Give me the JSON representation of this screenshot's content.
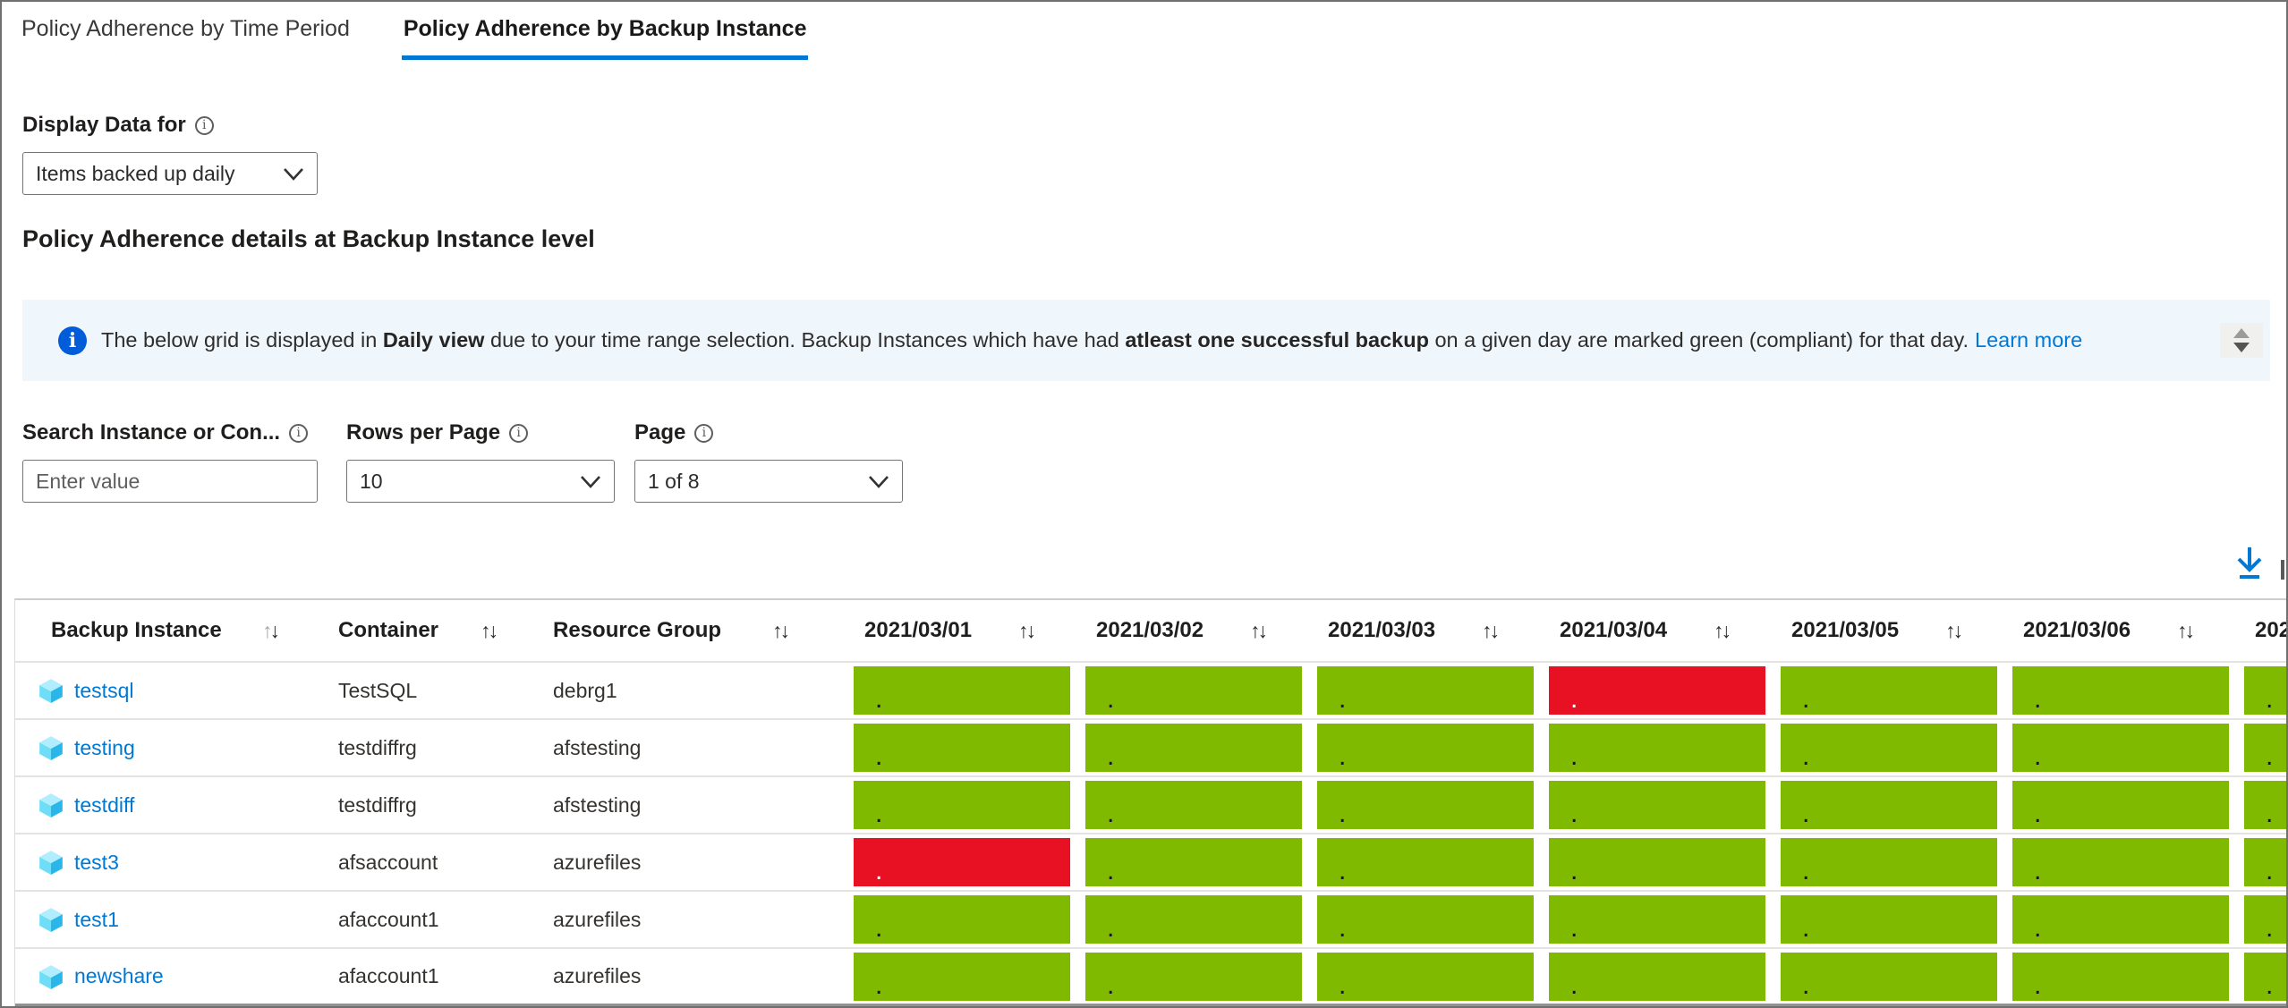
{
  "tabs": [
    {
      "label": "Policy Adherence by Time Period",
      "active": false
    },
    {
      "label": "Policy Adherence by Backup Instance",
      "active": true
    }
  ],
  "display_data": {
    "label": "Display Data for",
    "value": "Items backed up daily"
  },
  "section_title": "Policy Adherence details at Backup Instance level",
  "banner": {
    "segments": [
      {
        "text": "The below grid is displayed in ",
        "bold": false
      },
      {
        "text": "Daily view",
        "bold": true
      },
      {
        "text": " due to your time range selection. Backup Instances which have had ",
        "bold": false
      },
      {
        "text": "atleast one successful backup",
        "bold": true
      },
      {
        "text": " on a given day are marked green (compliant) for that day.",
        "bold": false
      }
    ],
    "link": "Learn more"
  },
  "controls": {
    "search": {
      "label": "Search Instance or Con...",
      "placeholder": "Enter value"
    },
    "rows_per_page": {
      "label": "Rows per Page",
      "value": "10"
    },
    "page": {
      "label": "Page",
      "value": "1 of 8"
    }
  },
  "icons": {
    "info": "i",
    "sort_up": "↑",
    "sort_down": "↓"
  },
  "table": {
    "text_columns": [
      "Backup Instance",
      "Container",
      "Resource Group"
    ],
    "date_columns": [
      "2021/03/01",
      "2021/03/02",
      "2021/03/03",
      "2021/03/04",
      "2021/03/05",
      "2021/03/06",
      "202"
    ],
    "cell_marker": ".",
    "rows": [
      {
        "instance": "testsql",
        "container": "TestSQL",
        "resource_group": "debrg1",
        "statuses": [
          "compliant",
          "compliant",
          "compliant",
          "noncompliant",
          "compliant",
          "compliant",
          "compliant"
        ]
      },
      {
        "instance": "testing",
        "container": "testdiffrg",
        "resource_group": "afstesting",
        "statuses": [
          "compliant",
          "compliant",
          "compliant",
          "compliant",
          "compliant",
          "compliant",
          "compliant"
        ]
      },
      {
        "instance": "testdiff",
        "container": "testdiffrg",
        "resource_group": "afstesting",
        "statuses": [
          "compliant",
          "compliant",
          "compliant",
          "compliant",
          "compliant",
          "compliant",
          "compliant"
        ]
      },
      {
        "instance": "test3",
        "container": "afsaccount",
        "resource_group": "azurefiles",
        "statuses": [
          "noncompliant",
          "compliant",
          "compliant",
          "compliant",
          "compliant",
          "compliant",
          "compliant"
        ]
      },
      {
        "instance": "test1",
        "container": "afaccount1",
        "resource_group": "azurefiles",
        "statuses": [
          "compliant",
          "compliant",
          "compliant",
          "compliant",
          "compliant",
          "compliant",
          "compliant"
        ]
      },
      {
        "instance": "newshare",
        "container": "afaccount1",
        "resource_group": "azurefiles",
        "statuses": [
          "compliant",
          "compliant",
          "compliant",
          "compliant",
          "compliant",
          "compliant",
          "compliant"
        ]
      }
    ]
  },
  "colors": {
    "compliant": "#7fba00",
    "noncompliant": "#e81123",
    "accent": "#0078d4",
    "link": "#0078d4",
    "info_icon": "#015cda",
    "banner_bg": "#eff6fc"
  }
}
